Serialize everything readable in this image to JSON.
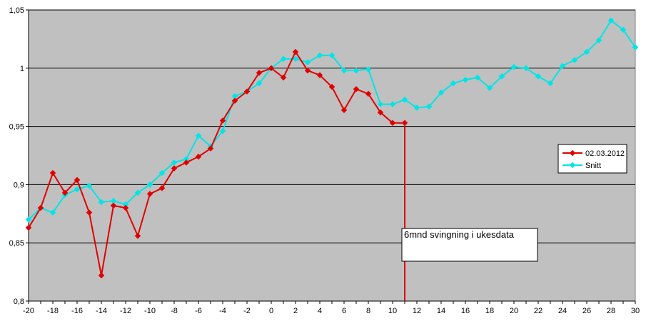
{
  "chart_data": {
    "type": "line",
    "title": "",
    "xlabel": "",
    "ylabel": "",
    "xlim": [
      -20,
      30
    ],
    "ylim": [
      0.8,
      1.05
    ],
    "x_ticks": [
      "-20",
      "-18",
      "-16",
      "-14",
      "-12",
      "-10",
      "-8",
      "-6",
      "-4",
      "-2",
      "0",
      "2",
      "4",
      "6",
      "8",
      "10",
      "12",
      "14",
      "16",
      "18",
      "20",
      "22",
      "24",
      "26",
      "28",
      "30"
    ],
    "y_ticks": [
      "0,8",
      "0,85",
      "0,9",
      "0,95",
      "1",
      "1,05"
    ],
    "y_tick_values": [
      0.8,
      0.85,
      0.9,
      0.95,
      1.0,
      1.05
    ],
    "grid": "horizontal",
    "plot_background": "#c0c0c0",
    "legend_position": "right",
    "series": [
      {
        "name": "02.03.2012",
        "color": "#e00000",
        "marker": "diamond",
        "x": [
          -20,
          -19,
          -18,
          -17,
          -16,
          -15,
          -14,
          -13,
          -12,
          -11,
          -10,
          -9,
          -8,
          -7,
          -6,
          -5,
          -4,
          -3,
          -2,
          -1,
          0,
          1,
          2,
          3,
          4,
          5,
          6,
          7,
          8,
          9,
          10,
          11
        ],
        "y": [
          0.863,
          0.88,
          0.91,
          0.893,
          0.904,
          0.876,
          0.822,
          0.882,
          0.88,
          0.856,
          0.892,
          0.897,
          0.914,
          0.919,
          0.924,
          0.931,
          0.955,
          0.972,
          0.98,
          0.996,
          1.0,
          0.992,
          1.014,
          0.998,
          0.994,
          0.984,
          0.964,
          0.982,
          0.978,
          0.962,
          0.953,
          0.953
        ]
      },
      {
        "name": "Snitt",
        "color": "#00e5e5",
        "marker": "diamond",
        "x": [
          -20,
          -19,
          -18,
          -17,
          -16,
          -15,
          -14,
          -13,
          -12,
          -11,
          -10,
          -9,
          -8,
          -7,
          -6,
          -5,
          -4,
          -3,
          -2,
          -1,
          0,
          1,
          2,
          3,
          4,
          5,
          6,
          7,
          8,
          9,
          10,
          11,
          12,
          13,
          14,
          15,
          16,
          17,
          18,
          19,
          20,
          21,
          22,
          23,
          24,
          25,
          26,
          27,
          28,
          29,
          30
        ],
        "y": [
          0.87,
          0.88,
          0.876,
          0.891,
          0.896,
          0.899,
          0.885,
          0.886,
          0.883,
          0.893,
          0.9,
          0.91,
          0.919,
          0.922,
          0.942,
          0.933,
          0.946,
          0.976,
          0.98,
          0.987,
          1.0,
          1.008,
          1.008,
          1.005,
          1.011,
          1.011,
          0.998,
          0.998,
          0.999,
          0.969,
          0.969,
          0.973,
          0.966,
          0.967,
          0.979,
          0.987,
          0.99,
          0.992,
          0.983,
          0.993,
          1.001,
          1.0,
          0.993,
          0.987,
          1.002,
          1.007,
          1.014,
          1.024,
          1.041,
          1.033,
          1.018
        ]
      }
    ],
    "annotations": [
      {
        "text": "6mnd svingning i ukesdata",
        "x": 11,
        "color": "#e00000"
      }
    ]
  }
}
